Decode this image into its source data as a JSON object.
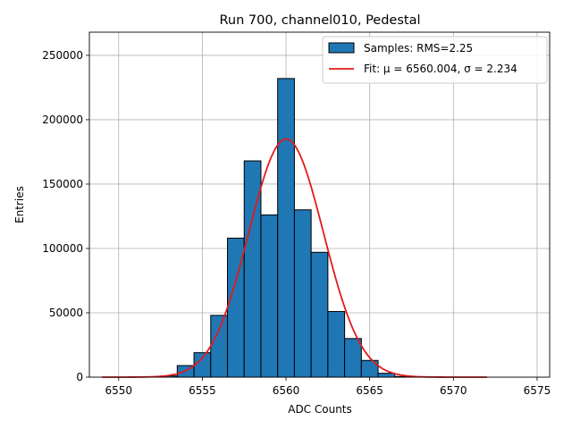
{
  "chart_data": {
    "type": "bar",
    "title": "Run 700, channel010, Pedestal",
    "xlabel": "ADC Counts",
    "ylabel": "Entries",
    "xlim": [
      6548.25,
      6575.75
    ],
    "ylim": [
      0,
      268000
    ],
    "grid": true,
    "legend_position": "top-right",
    "x_ticks": [
      6550,
      6555,
      6560,
      6565,
      6570,
      6575
    ],
    "y_ticks": [
      0,
      50000,
      100000,
      150000,
      200000,
      250000
    ],
    "histogram": {
      "name": "Samples: RMS=2.25",
      "bin_width": 1,
      "bin_centers": [
        6553,
        6554,
        6555,
        6556,
        6557,
        6558,
        6559,
        6560,
        6561,
        6562,
        6563,
        6564,
        6565,
        6566,
        6567
      ],
      "counts": [
        1000,
        9000,
        19000,
        48000,
        108000,
        168000,
        126000,
        232000,
        130000,
        97000,
        51000,
        30000,
        13000,
        3000,
        500
      ],
      "color": "#1f77b4",
      "edge_color": "#000000"
    },
    "fit": {
      "name": "Fit: μ = 6560.004, σ = 2.234",
      "mu": 6560.004,
      "sigma": 2.234,
      "amplitude": 185000,
      "x_range": [
        6549,
        6572
      ],
      "color": "#e31a1c"
    }
  }
}
